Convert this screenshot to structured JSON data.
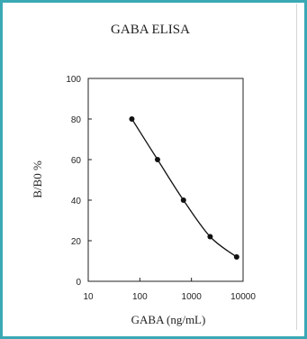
{
  "colors": {
    "border": "#3aa9b4",
    "ink": "#222222"
  },
  "chart_data": {
    "type": "line",
    "title": "GABA ELISA",
    "xlabel": "GABA (ng/mL)",
    "ylabel": "B/B0 %",
    "x_scale": "log",
    "xlim": [
      10,
      10000
    ],
    "ylim": [
      0,
      100
    ],
    "x_ticks": [
      "10",
      "100",
      "1000",
      "10000"
    ],
    "x_tick_values": [
      10,
      100,
      1000,
      10000
    ],
    "y_ticks": [
      "0",
      "20",
      "40",
      "60",
      "80",
      "100"
    ],
    "y_tick_values": [
      0,
      20,
      40,
      60,
      80,
      100
    ],
    "grid": false,
    "series": [
      {
        "x": [
          70,
          220,
          700,
          2300,
          7500
        ],
        "y": [
          80,
          60,
          40,
          22,
          12
        ],
        "marker": "circle"
      }
    ]
  }
}
